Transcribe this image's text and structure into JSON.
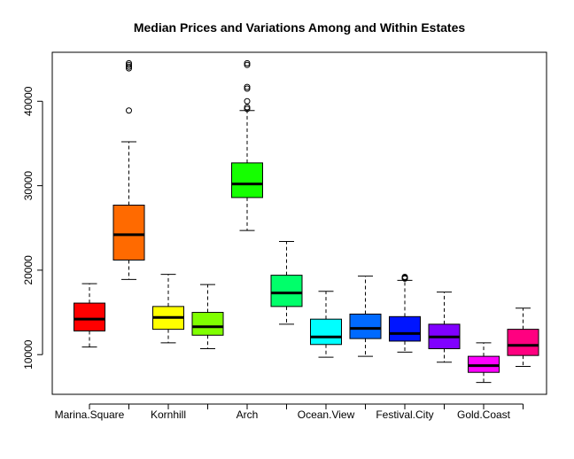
{
  "chart_data": {
    "type": "boxplot",
    "title": "Median Prices and Variations Among and Within Estates",
    "xlabel": "",
    "ylabel": "",
    "ylim": [
      5300,
      45800
    ],
    "y_ticks": [
      10000,
      20000,
      30000,
      40000
    ],
    "y_tick_labels": [
      "10000",
      "20000",
      "30000",
      "40000"
    ],
    "grid": false,
    "legend": "none",
    "categories": [
      "Marina.Square",
      "",
      "Kornhill",
      "",
      "Arch",
      "",
      "Ocean.View",
      "",
      "Festival.City",
      "",
      "Gold.Coast",
      ""
    ],
    "boxes": [
      {
        "color": "#FF0000",
        "whisker_low": 10900,
        "q1": 12800,
        "median": 14200,
        "q3": 16100,
        "whisker_high": 18400,
        "outliers": []
      },
      {
        "color": "#FF6A00",
        "whisker_low": 18900,
        "q1": 21200,
        "median": 24200,
        "q3": 27700,
        "whisker_high": 35200,
        "outliers": [
          38900,
          43900,
          44100,
          44300,
          44500
        ]
      },
      {
        "color": "#FFFF00",
        "whisker_low": 11400,
        "q1": 13000,
        "median": 14400,
        "q3": 15700,
        "whisker_high": 19500,
        "outliers": []
      },
      {
        "color": "#80FF00",
        "whisker_low": 10700,
        "q1": 12300,
        "median": 13300,
        "q3": 15000,
        "whisker_high": 18300,
        "outliers": []
      },
      {
        "color": "#15FF00",
        "whisker_low": 24700,
        "q1": 28600,
        "median": 30200,
        "q3": 32700,
        "whisker_high": 38900,
        "outliers": [
          39100,
          39300,
          40000,
          41500,
          41700,
          44300,
          44500
        ]
      },
      {
        "color": "#00FF6A",
        "whisker_low": 13600,
        "q1": 15700,
        "median": 17300,
        "q3": 19400,
        "whisker_high": 23400,
        "outliers": []
      },
      {
        "color": "#00FFFF",
        "whisker_low": 9700,
        "q1": 11200,
        "median": 12100,
        "q3": 14200,
        "whisker_high": 17500,
        "outliers": []
      },
      {
        "color": "#006AFF",
        "whisker_low": 9800,
        "q1": 11900,
        "median": 13100,
        "q3": 14800,
        "whisker_high": 19300,
        "outliers": []
      },
      {
        "color": "#0015FF",
        "whisker_low": 10300,
        "q1": 11600,
        "median": 12500,
        "q3": 14500,
        "whisker_high": 18800,
        "outliers": [
          19000,
          19100,
          19200
        ]
      },
      {
        "color": "#8000FF",
        "whisker_low": 9100,
        "q1": 10700,
        "median": 12100,
        "q3": 13600,
        "whisker_high": 17400,
        "outliers": []
      },
      {
        "color": "#FF00FF",
        "whisker_low": 6700,
        "q1": 7900,
        "median": 8700,
        "q3": 9800,
        "whisker_high": 11400,
        "outliers": []
      },
      {
        "color": "#FF0080",
        "whisker_low": 8600,
        "q1": 9900,
        "median": 11100,
        "q3": 13000,
        "whisker_high": 15500,
        "outliers": []
      }
    ]
  }
}
